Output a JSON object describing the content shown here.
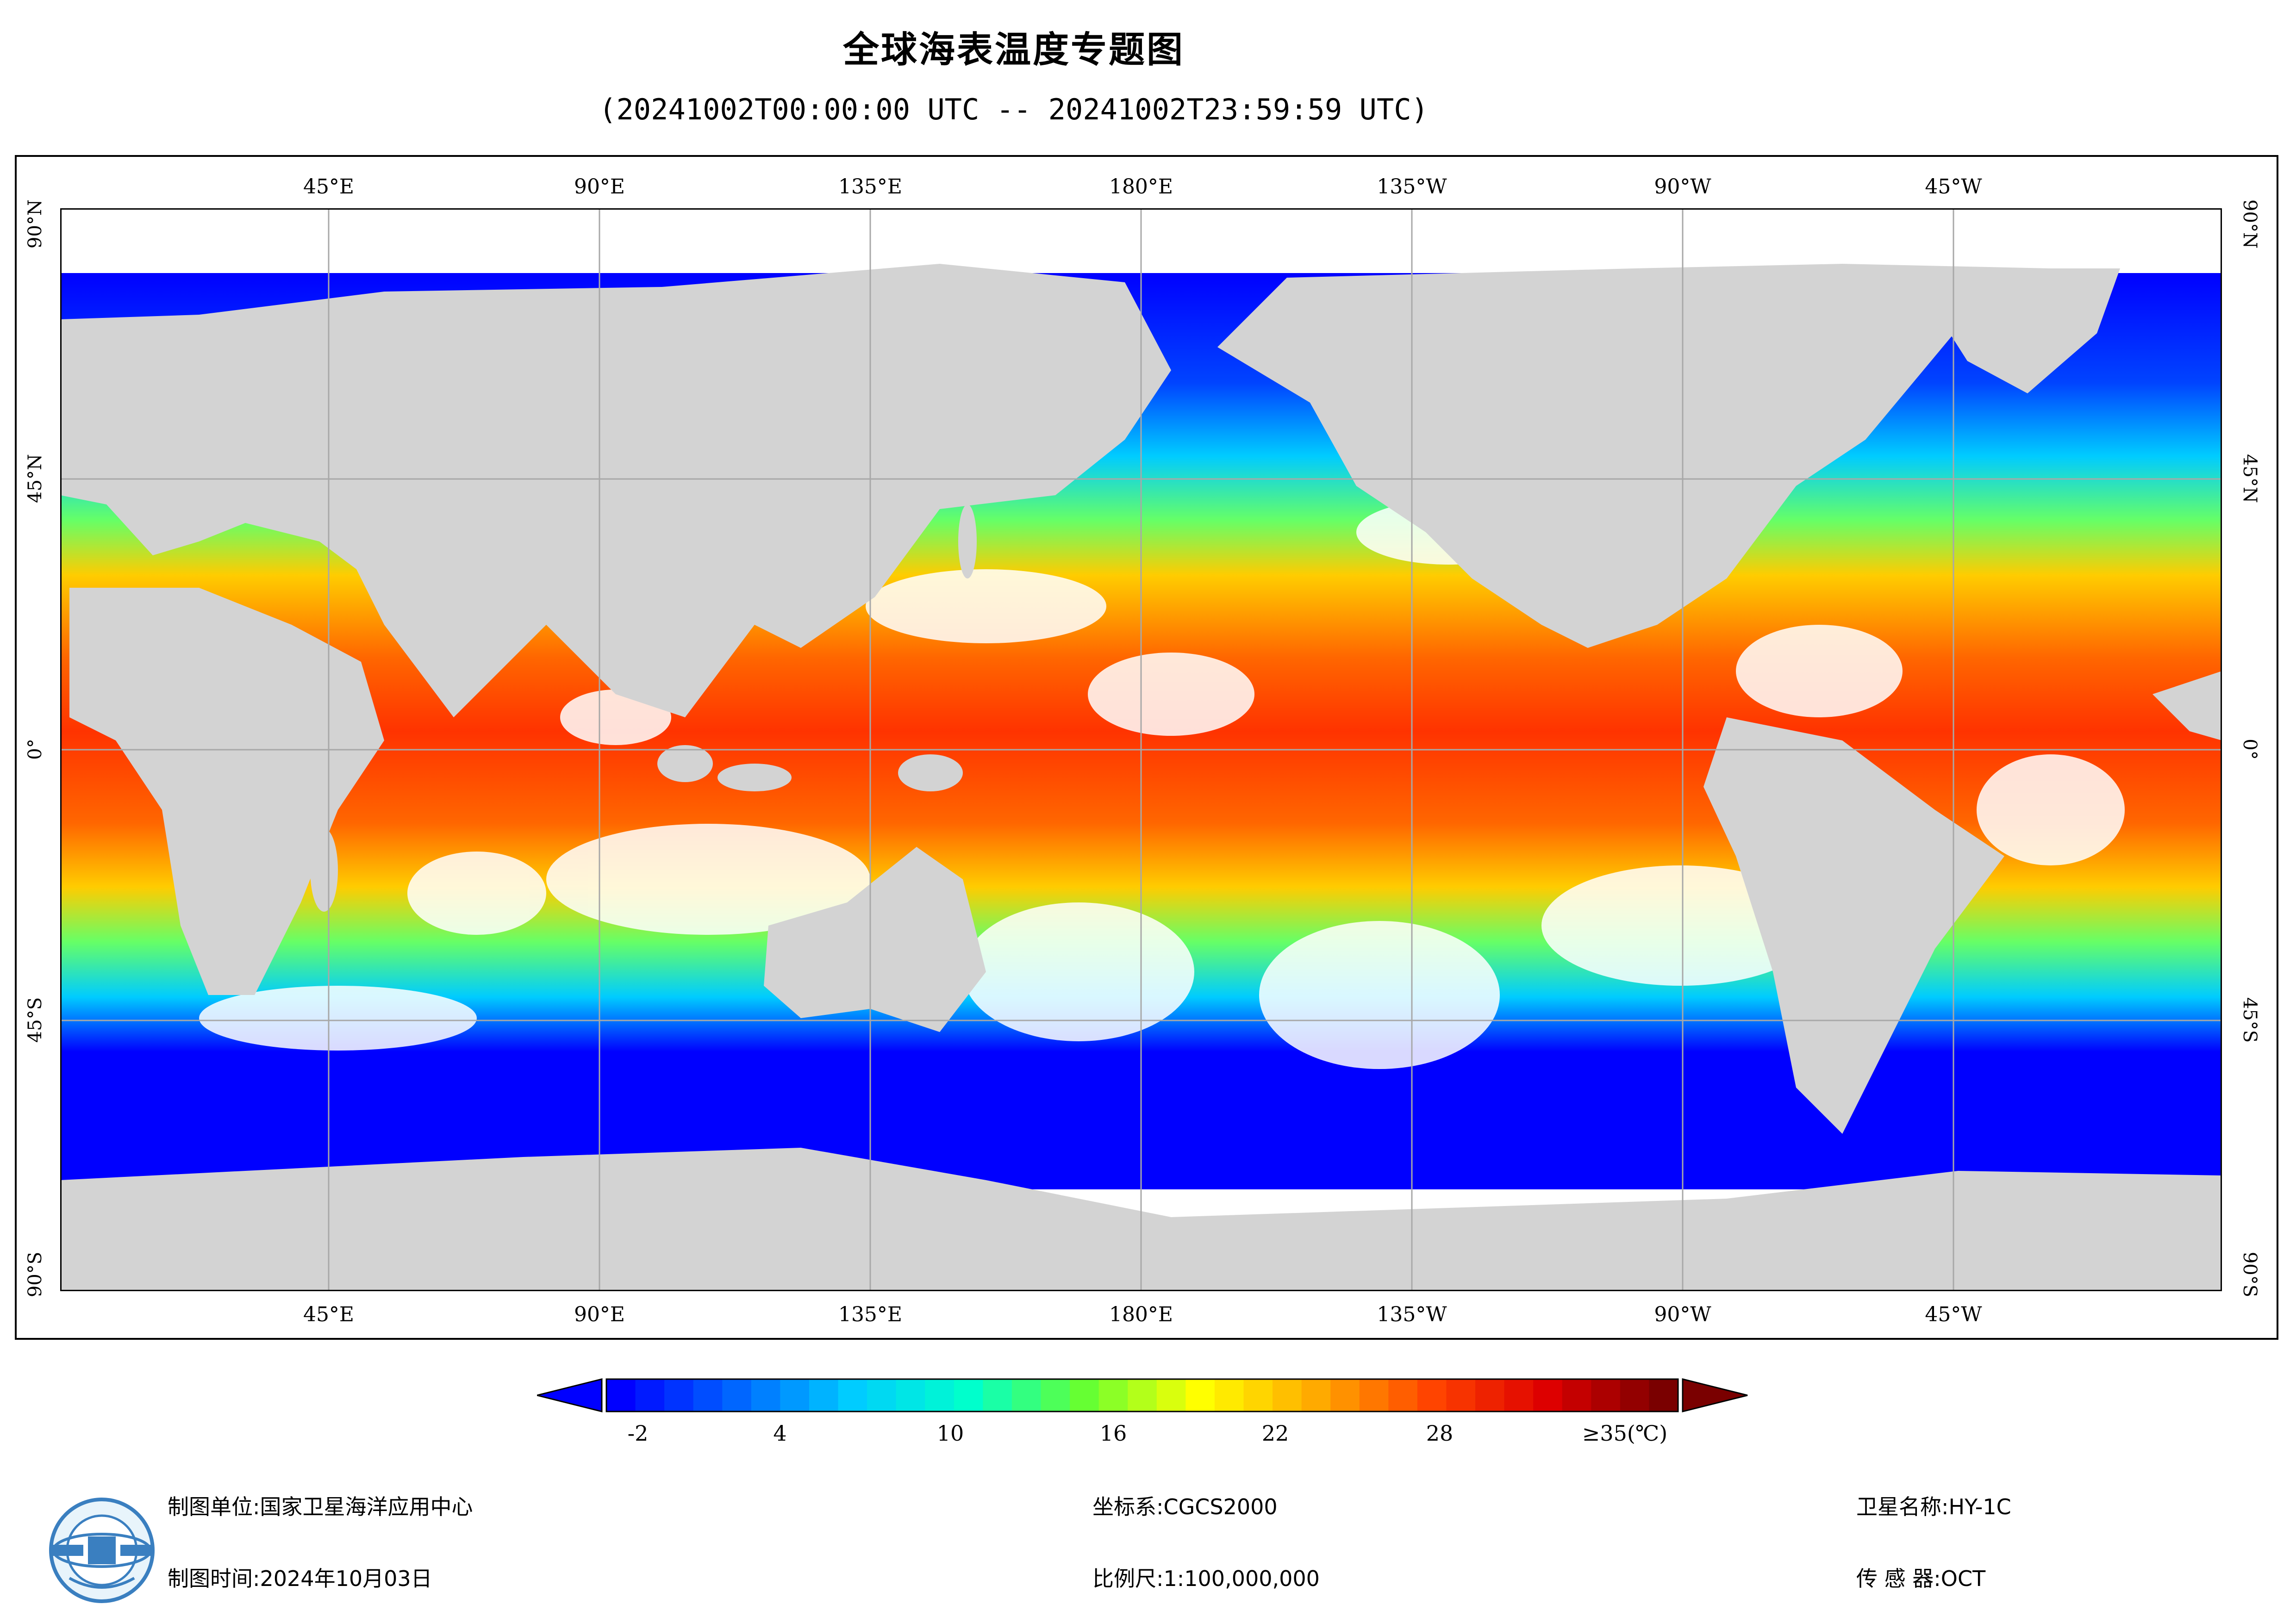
{
  "title": "全球海表温度专题图",
  "subtitle": "(20241002T00:00:00 UTC -- 20241002T23:59:59 UTC)",
  "lon_labels": [
    "45°E",
    "90°E",
    "135°E",
    "180°E",
    "135°W",
    "90°W",
    "45°W"
  ],
  "lat_labels": [
    "90°N",
    "45°N",
    "0°",
    "45°S",
    "90°S"
  ],
  "colorbar": {
    "ticks": [
      "-2",
      "4",
      "10",
      "16",
      "22",
      "28",
      "≥35(℃)"
    ],
    "min": -2,
    "max": 35,
    "colors": [
      "#0000ff",
      "#0066ff",
      "#00ccff",
      "#00ffcc",
      "#66ff33",
      "#ffff00",
      "#ffaa00",
      "#ff4400",
      "#dd0000",
      "#7a0000"
    ]
  },
  "footer": {
    "unit_label": "制图单位:国家卫星海洋应用中心",
    "time_label": "制图时间:2024年10月03日",
    "crs_label": "坐标系:CGCS2000",
    "scale_label": "比例尺:1:100,000,000",
    "satellite_label": "卫星名称:HY-1C",
    "sensor_label": "传 感 器:OCT"
  }
}
